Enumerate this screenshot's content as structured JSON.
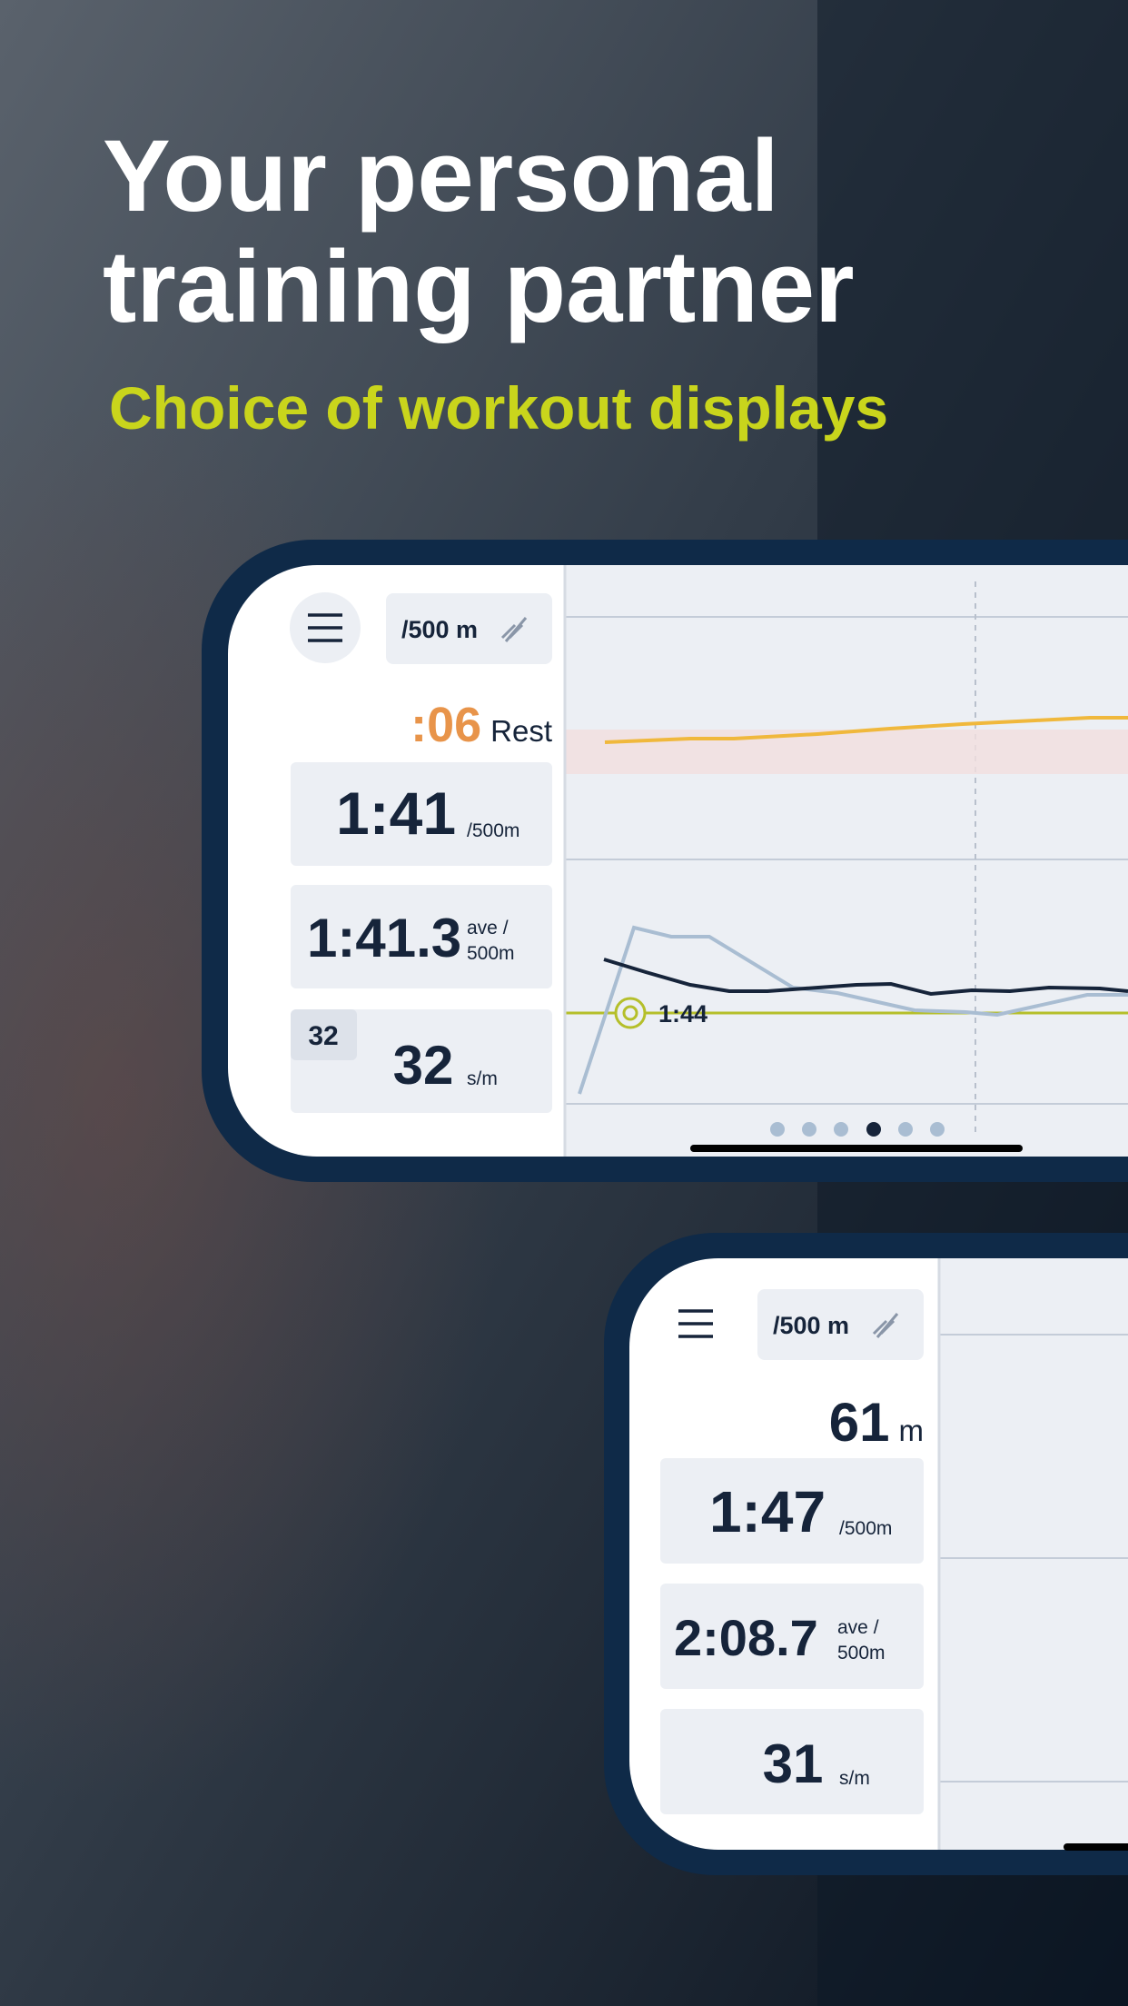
{
  "headline": {
    "line1": "Your personal",
    "line2": "training partner",
    "subtitle": "Choice of workout displays"
  },
  "screen1": {
    "unit_button": "/500 m",
    "rest_time": ":06",
    "rest_label": "Rest",
    "pace": "1:41",
    "pace_unit": "/500m",
    "average_pace": "1:41.3",
    "average_unit_line1": "ave /",
    "average_unit_line2": "500m",
    "stroke_badge": "32",
    "stroke_rate": "32",
    "stroke_unit": "s/m",
    "target_pace": "1:44"
  },
  "screen2": {
    "unit_button": "/500 m",
    "distance": "61",
    "distance_unit": "m",
    "pace": "1:47",
    "pace_unit": "/500m",
    "average_pace": "2:08.7",
    "average_unit_line1": "ave /",
    "average_unit_line2": "500m",
    "stroke_rate": "31",
    "stroke_unit": "s/m"
  }
}
